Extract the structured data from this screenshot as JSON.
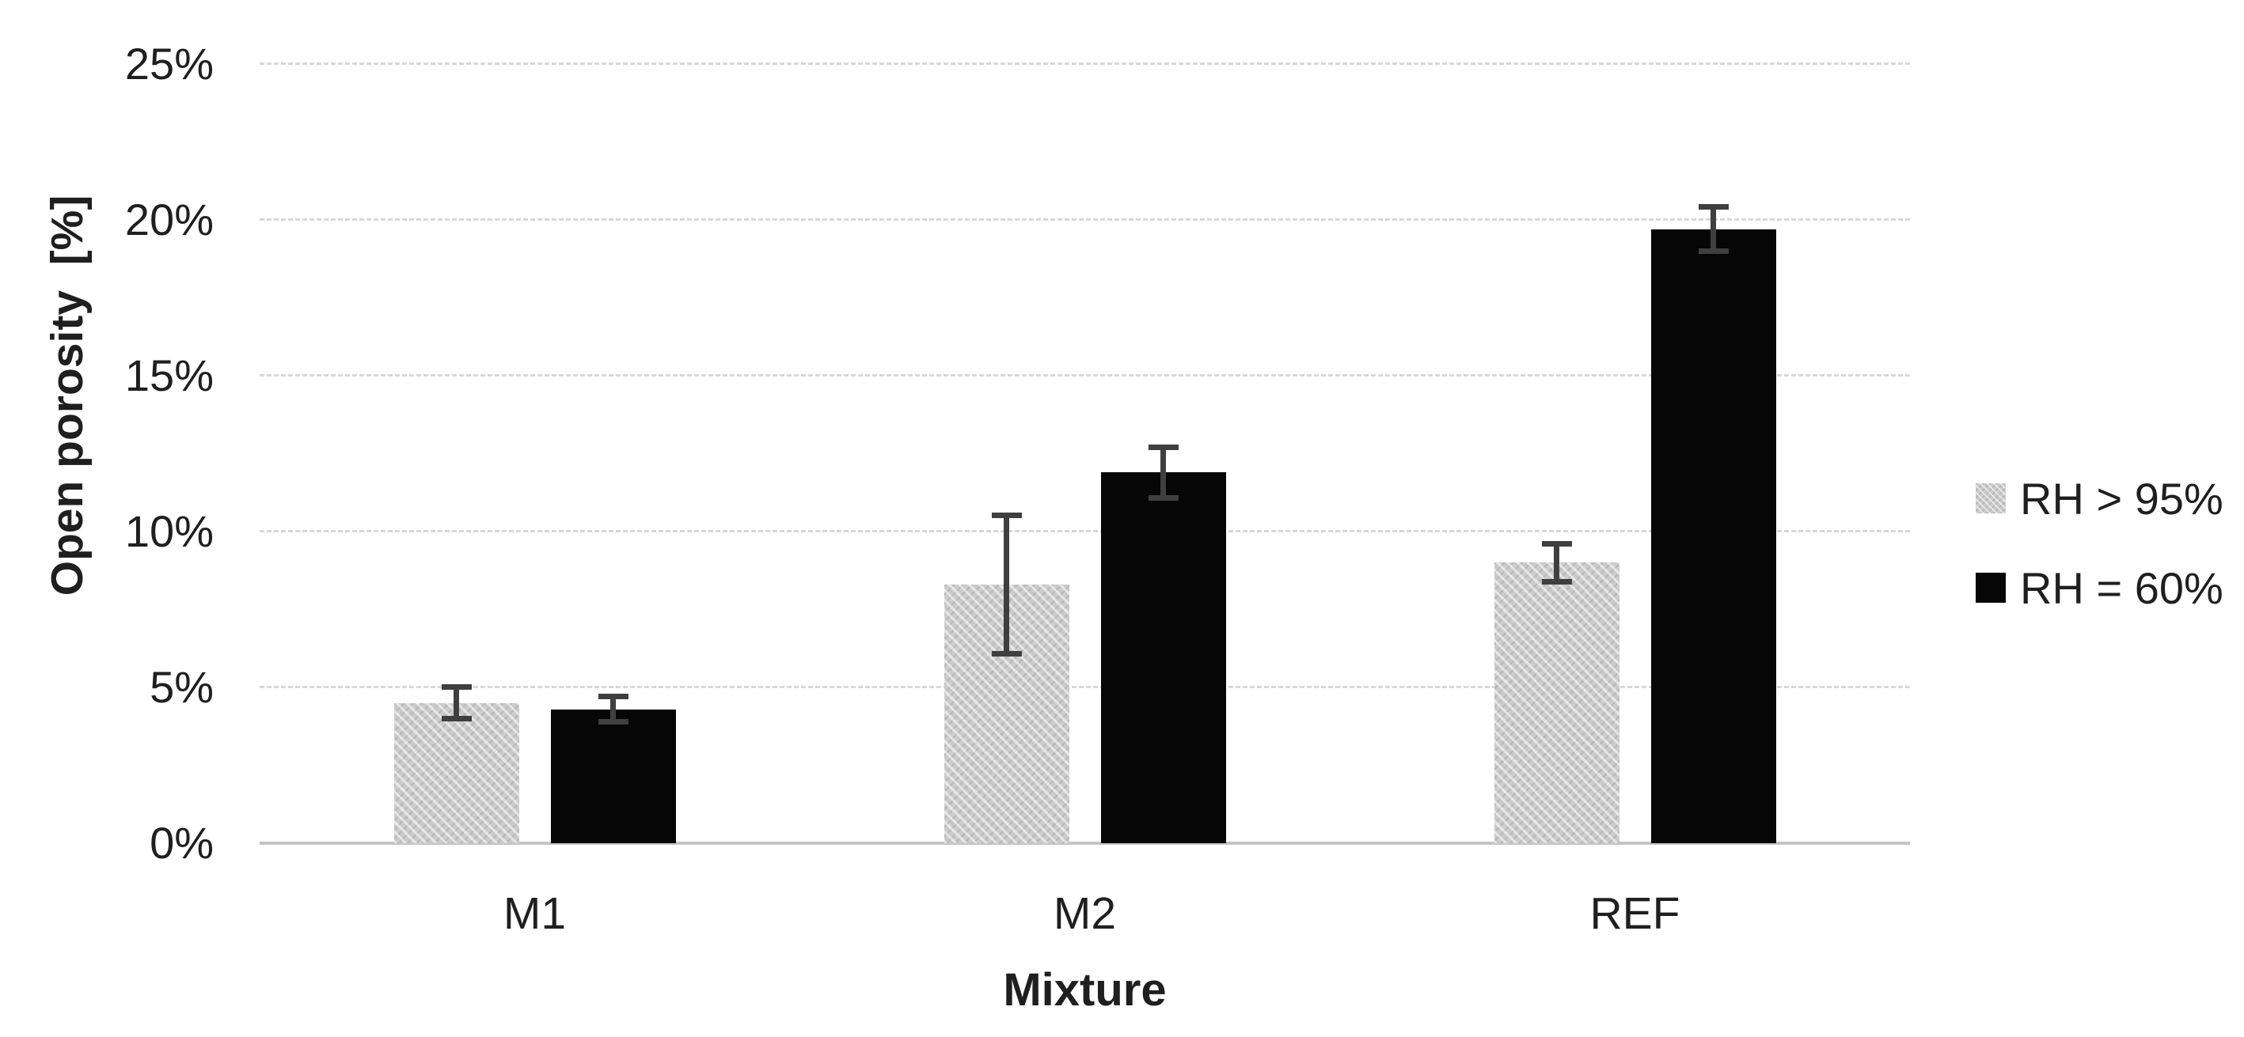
{
  "chart_data": {
    "type": "bar",
    "title": "",
    "categories": [
      "M1",
      "M2",
      "REF"
    ],
    "series": [
      {
        "name": "RH > 95%",
        "color": "#cbcbcb",
        "pattern": "fine-gray-texture",
        "values": [
          4.5,
          8.3,
          9.0
        ],
        "errors": [
          0.6,
          2.3,
          0.7
        ]
      },
      {
        "name": "RH = 60%",
        "color": "#060606",
        "pattern": "solid",
        "values": [
          4.3,
          11.9,
          19.7
        ],
        "errors": [
          0.5,
          0.9,
          0.8
        ]
      }
    ],
    "xlabel": "Mixture",
    "ylabel": "Open porosity  [%]",
    "ylim": [
      0,
      25
    ],
    "ytick_step": 5,
    "ytick_labels": [
      "0%",
      "5%",
      "10%",
      "15%",
      "20%",
      "25%"
    ],
    "grid": true,
    "gridline_style": "dashed",
    "error_bars": true,
    "legend_position": "right"
  },
  "colors": {
    "background": "#ffffff",
    "text": "#1f1f1f",
    "gridline": "#d8d8d8",
    "axis_line": "#c4c4c4",
    "error_bar": "#3f3f3f",
    "series_gray": "#cbcbcb",
    "series_black": "#060606"
  }
}
